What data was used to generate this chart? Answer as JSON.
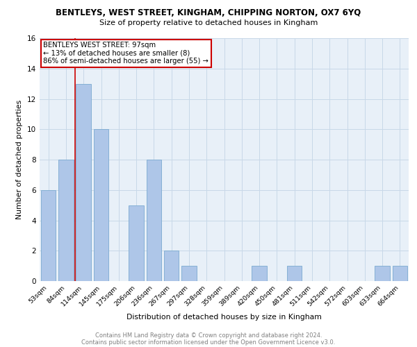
{
  "title": "BENTLEYS, WEST STREET, KINGHAM, CHIPPING NORTON, OX7 6YQ",
  "subtitle": "Size of property relative to detached houses in Kingham",
  "xlabel": "Distribution of detached houses by size in Kingham",
  "ylabel": "Number of detached properties",
  "categories": [
    "53sqm",
    "84sqm",
    "114sqm",
    "145sqm",
    "175sqm",
    "206sqm",
    "236sqm",
    "267sqm",
    "297sqm",
    "328sqm",
    "359sqm",
    "389sqm",
    "420sqm",
    "450sqm",
    "481sqm",
    "511sqm",
    "542sqm",
    "572sqm",
    "603sqm",
    "633sqm",
    "664sqm"
  ],
  "values": [
    6,
    8,
    13,
    10,
    0,
    5,
    8,
    2,
    1,
    0,
    0,
    0,
    1,
    0,
    1,
    0,
    0,
    0,
    0,
    1,
    1
  ],
  "bar_color": "#aec6e8",
  "bar_edge_color": "#7aaad0",
  "ylim": [
    0,
    16
  ],
  "yticks": [
    0,
    2,
    4,
    6,
    8,
    10,
    12,
    14,
    16
  ],
  "annotation_text": "BENTLEYS WEST STREET: 97sqm\n← 13% of detached houses are smaller (8)\n86% of semi-detached houses are larger (55) →",
  "annotation_box_color": "#ffffff",
  "annotation_border_color": "#cc0000",
  "property_line_color": "#cc0000",
  "grid_color": "#c8d8e8",
  "background_color": "#e8f0f8",
  "footer_line1": "Contains HM Land Registry data © Crown copyright and database right 2024.",
  "footer_line2": "Contains public sector information licensed under the Open Government Licence v3.0."
}
